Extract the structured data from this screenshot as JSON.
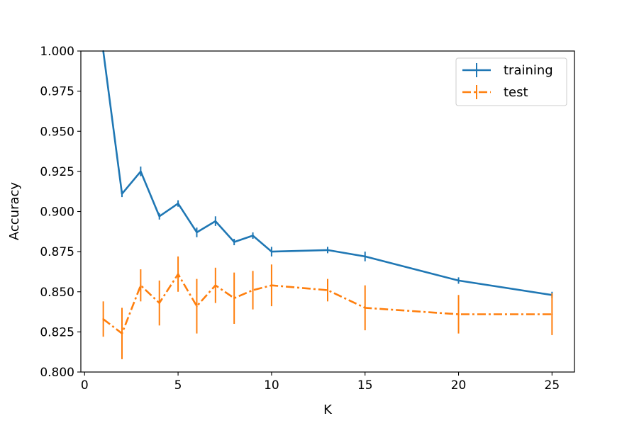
{
  "chart_data": {
    "type": "line",
    "title": "",
    "xlabel": "K",
    "ylabel": "Accuracy",
    "xlim": [
      -0.2,
      26.2
    ],
    "ylim": [
      0.8,
      1.0
    ],
    "x_ticks": [
      0,
      5,
      10,
      15,
      20,
      25
    ],
    "x_tick_labels": [
      "0",
      "5",
      "10",
      "15",
      "20",
      "25"
    ],
    "y_ticks": [
      0.8,
      0.825,
      0.85,
      0.875,
      0.9,
      0.925,
      0.95,
      0.975,
      1.0
    ],
    "y_tick_labels": [
      "0.800",
      "0.825",
      "0.850",
      "0.875",
      "0.900",
      "0.925",
      "0.950",
      "0.975",
      "1.000"
    ],
    "grid": false,
    "legend_position": "top-right",
    "series": [
      {
        "name": "training",
        "color": "#1f77b4",
        "line_style": "solid",
        "x": [
          1,
          2,
          3,
          4,
          5,
          6,
          7,
          8,
          9,
          10,
          13,
          15,
          20,
          25
        ],
        "y": [
          1.0,
          0.911,
          0.925,
          0.897,
          0.905,
          0.887,
          0.894,
          0.881,
          0.885,
          0.875,
          0.876,
          0.872,
          0.857,
          0.848
        ],
        "error": [
          0.0,
          0.002,
          0.003,
          0.002,
          0.002,
          0.003,
          0.003,
          0.002,
          0.002,
          0.003,
          0.002,
          0.003,
          0.002,
          0.002
        ]
      },
      {
        "name": "test",
        "color": "#ff7f0e",
        "line_style": "dashdot",
        "x": [
          1,
          2,
          3,
          4,
          5,
          6,
          7,
          8,
          9,
          10,
          13,
          15,
          20,
          25
        ],
        "y": [
          0.833,
          0.824,
          0.854,
          0.843,
          0.861,
          0.841,
          0.854,
          0.846,
          0.851,
          0.854,
          0.851,
          0.84,
          0.836,
          0.836
        ],
        "error": [
          0.011,
          0.016,
          0.01,
          0.014,
          0.011,
          0.017,
          0.011,
          0.016,
          0.012,
          0.013,
          0.007,
          0.014,
          0.012,
          0.013
        ]
      }
    ]
  }
}
